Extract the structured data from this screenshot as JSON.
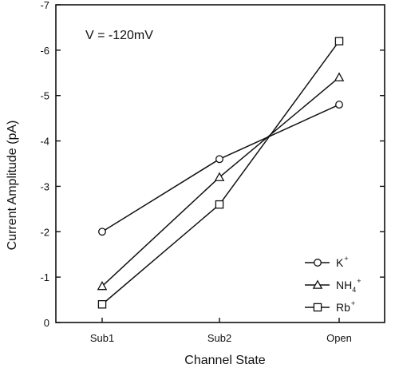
{
  "annotation": "V = -120mV",
  "chart_data": {
    "type": "line",
    "title": "",
    "xlabel": "Channel State",
    "ylabel": "Current Amplitude (pA)",
    "categories": [
      "Sub1",
      "Sub2",
      "Open"
    ],
    "ylim": [
      0,
      -7
    ],
    "yticks": [
      0,
      -1,
      -2,
      -3,
      -4,
      -5,
      -6,
      -7
    ],
    "ytick_labels": [
      "0",
      "-1",
      "-2",
      "-3",
      "-4",
      "-5",
      "-6",
      "-7"
    ],
    "grid": false,
    "legend_position": "bottom-right",
    "series": [
      {
        "name": "K+",
        "label_base": "K",
        "label_sub": "",
        "label_sup": "+",
        "marker": "circle",
        "values": [
          -2.0,
          -3.6,
          -4.8
        ]
      },
      {
        "name": "NH4+",
        "label_base": "NH",
        "label_sub": "4",
        "label_sup": "+",
        "marker": "triangle",
        "values": [
          -0.8,
          -3.2,
          -5.4
        ]
      },
      {
        "name": "Rb+",
        "label_base": "Rb",
        "label_sub": "",
        "label_sup": "+",
        "marker": "square",
        "values": [
          -0.4,
          -2.6,
          -6.2
        ]
      }
    ]
  }
}
